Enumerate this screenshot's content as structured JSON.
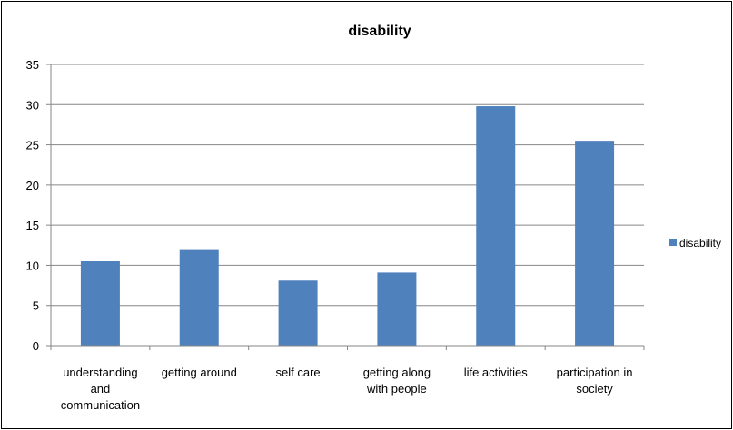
{
  "chart_data": {
    "type": "bar",
    "title": "disability",
    "xlabel": "",
    "ylabel": "",
    "ylim": [
      0,
      35
    ],
    "yticks": [
      0,
      5,
      10,
      15,
      20,
      25,
      30,
      35
    ],
    "grid": true,
    "legend": "right",
    "categories": [
      "understanding and communication",
      "getting around",
      "self care",
      "getting along with people",
      "life activities",
      "participation in society"
    ],
    "category_lines": [
      [
        "understanding",
        "and",
        "communication"
      ],
      [
        "getting around"
      ],
      [
        "self care"
      ],
      [
        "getting along",
        "with people"
      ],
      [
        "life activities"
      ],
      [
        "participation in",
        "society"
      ]
    ],
    "series": [
      {
        "name": "disability",
        "color": "#4F81BD",
        "values": [
          10.5,
          11.9,
          8.1,
          9.1,
          29.8,
          25.5
        ]
      }
    ]
  }
}
